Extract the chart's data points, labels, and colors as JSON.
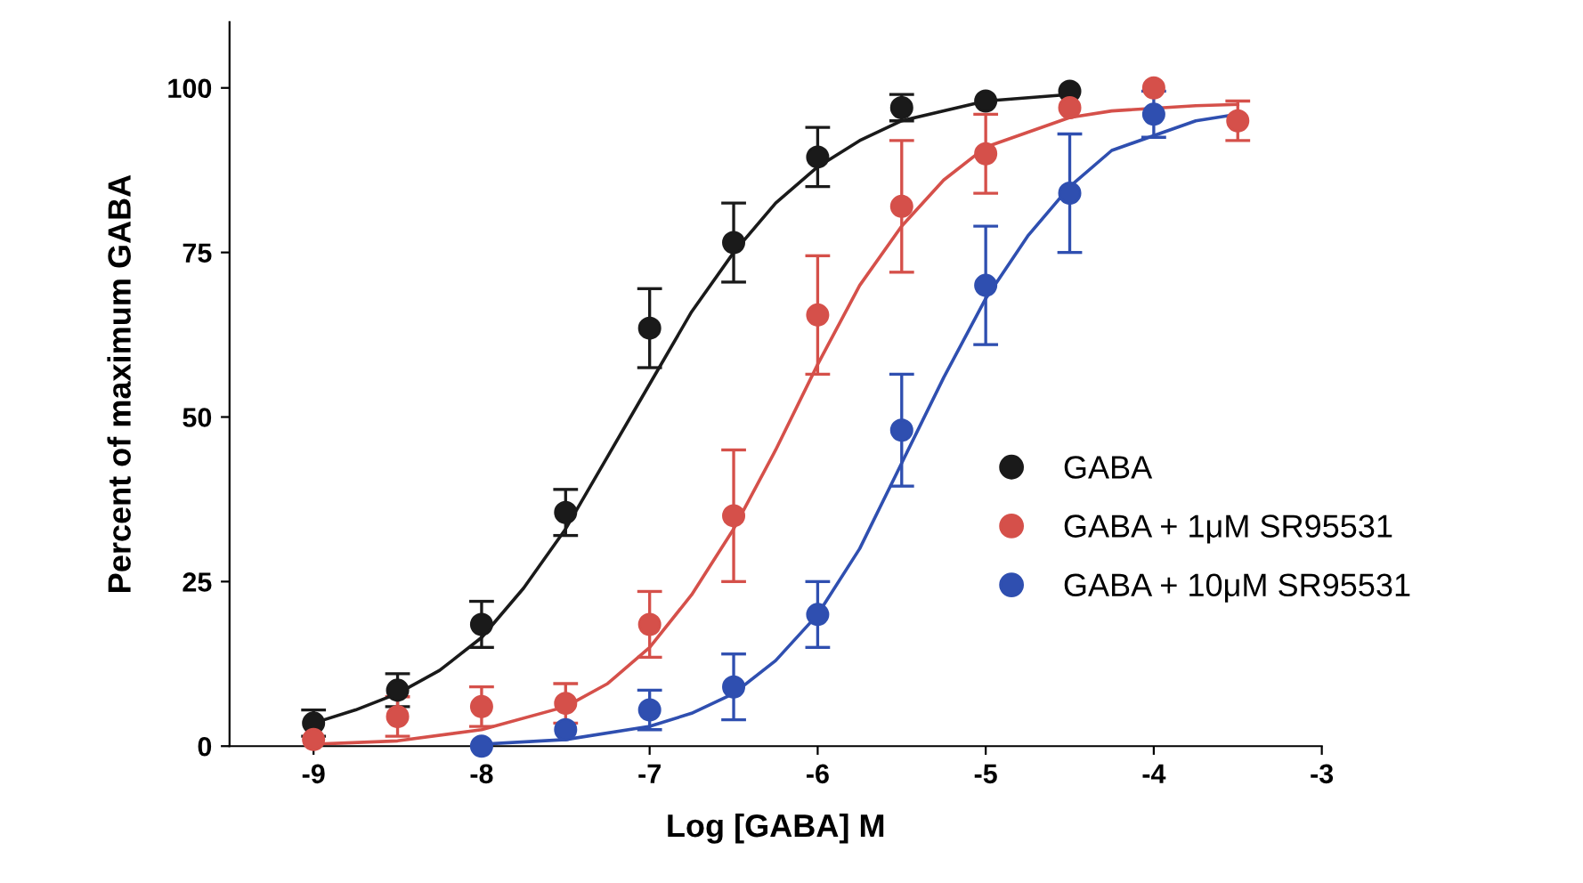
{
  "chart_data": {
    "type": "scatter",
    "xlabel": "Log [GABA] M",
    "ylabel": "Percent of maximum GABA",
    "xlim": [
      -9.5,
      -3
    ],
    "ylim": [
      0,
      110
    ],
    "xticks": [
      -9,
      -8,
      -7,
      -6,
      -5,
      -4,
      -3
    ],
    "yticks": [
      0,
      25,
      50,
      75,
      100
    ],
    "grid": false,
    "legend": "right",
    "series": [
      {
        "name": "GABA",
        "marker": "circle",
        "color": "#1a1a1a",
        "x": [
          -9,
          -8.5,
          -8,
          -7.5,
          -7,
          -6.5,
          -6,
          -5.5,
          -5,
          -4.5
        ],
        "values": [
          3.5,
          8.5,
          18.5,
          35.5,
          63.5,
          76.5,
          89.5,
          97,
          98,
          99.5
        ],
        "errors": [
          2,
          2.5,
          3.5,
          3.5,
          6,
          6,
          4.5,
          2,
          null,
          null
        ]
      },
      {
        "name": "GABA + 1μM SR95531",
        "marker": "circle",
        "color": "#d5504a",
        "x": [
          -9,
          -8.5,
          -8,
          -7.5,
          -7,
          -6.5,
          -6,
          -5.5,
          -5,
          -4.5,
          -4,
          -3.5
        ],
        "values": [
          1,
          4.5,
          6,
          6.5,
          18.5,
          35,
          65.5,
          82,
          90,
          97,
          100,
          95
        ],
        "errors": [
          null,
          3,
          3,
          3,
          5,
          10,
          9,
          10,
          6,
          null,
          null,
          3
        ]
      },
      {
        "name": "GABA + 10μM SR95531",
        "marker": "circle",
        "color": "#2f4fb0",
        "x": [
          -8,
          -7.5,
          -7,
          -6.5,
          -6,
          -5.5,
          -5,
          -4.5,
          -4
        ],
        "values": [
          0,
          2.5,
          5.5,
          9,
          20,
          48,
          70,
          84,
          96
        ],
        "errors": [
          null,
          null,
          3,
          5,
          5,
          8.5,
          9,
          9,
          3.5
        ]
      },
      {
        "type": "line",
        "marker": "none",
        "color": "#1a1a1a",
        "x": [
          -9,
          -8.75,
          -8.5,
          -8.25,
          -8,
          -7.75,
          -7.5,
          -7.25,
          -7,
          -6.75,
          -6.5,
          -6.25,
          -6,
          -5.75,
          -5.5,
          -5,
          -4.5
        ],
        "values": [
          3.5,
          5.5,
          8,
          11.5,
          16.5,
          24,
          33,
          44,
          55,
          66,
          75,
          82.5,
          88,
          92,
          95,
          98,
          99
        ]
      },
      {
        "type": "line",
        "marker": "none",
        "color": "#d5504a",
        "x": [
          -9,
          -8.5,
          -8,
          -7.5,
          -7.25,
          -7,
          -6.75,
          -6.5,
          -6.25,
          -6,
          -5.75,
          -5.5,
          -5.25,
          -5,
          -4.5,
          -4.25,
          -3.75,
          -3.5
        ],
        "values": [
          0.3,
          0.8,
          2.5,
          6,
          9.5,
          15,
          23,
          33,
          45,
          58,
          70,
          79,
          86,
          91,
          95.5,
          96.5,
          97.3,
          97.5
        ]
      },
      {
        "type": "line",
        "marker": "none",
        "color": "#2f4fb0",
        "x": [
          -8,
          -7.5,
          -7,
          -6.75,
          -6.5,
          -6.25,
          -6,
          -5.75,
          -5.5,
          -5.25,
          -5,
          -4.75,
          -4.5,
          -4.25,
          -3.75,
          -3.5
        ],
        "values": [
          0.3,
          1,
          3,
          5,
          8,
          13,
          20,
          30,
          43,
          56,
          68,
          77.5,
          85,
          90.5,
          95,
          96
        ]
      }
    ]
  }
}
